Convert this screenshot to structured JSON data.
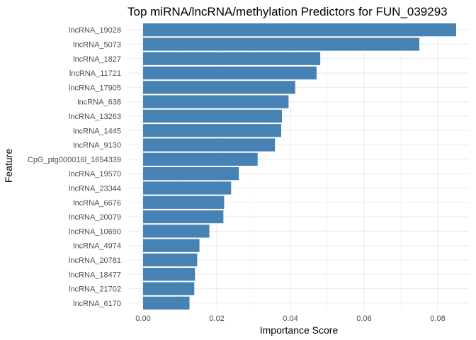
{
  "chart_data": {
    "type": "bar",
    "orientation": "horizontal",
    "title": "Top miRNA/lncRNA/methylation Predictors for FUN_039293",
    "xlabel": "Importance Score",
    "ylabel": "Feature",
    "xlim": [
      0,
      0.0888
    ],
    "x_ticks": [
      "0.00",
      "0.02",
      "0.04",
      "0.06",
      "0.08"
    ],
    "x_tick_values": [
      0,
      0.02,
      0.04,
      0.06,
      0.08
    ],
    "grid": true,
    "bar_color": "#4682b4",
    "categories": [
      "lncRNA_19028",
      "lncRNA_5073",
      "lncRNA_1827",
      "lncRNA_11721",
      "lncRNA_17905",
      "lncRNA_638",
      "lncRNA_13263",
      "lncRNA_1445",
      "lncRNA_9130",
      "CpG_ptg000016l_1654339",
      "lncRNA_19570",
      "lncRNA_23344",
      "lncRNA_6676",
      "lncRNA_20079",
      "lncRNA_10690",
      "lncRNA_4974",
      "lncRNA_20781",
      "lncRNA_18477",
      "lncRNA_21702",
      "lncRNA_6170"
    ],
    "values": [
      0.085,
      0.075,
      0.0481,
      0.0471,
      0.0413,
      0.0395,
      0.0377,
      0.0375,
      0.0358,
      0.0311,
      0.026,
      0.0239,
      0.022,
      0.0218,
      0.018,
      0.0153,
      0.0147,
      0.0141,
      0.0139,
      0.0126
    ]
  }
}
